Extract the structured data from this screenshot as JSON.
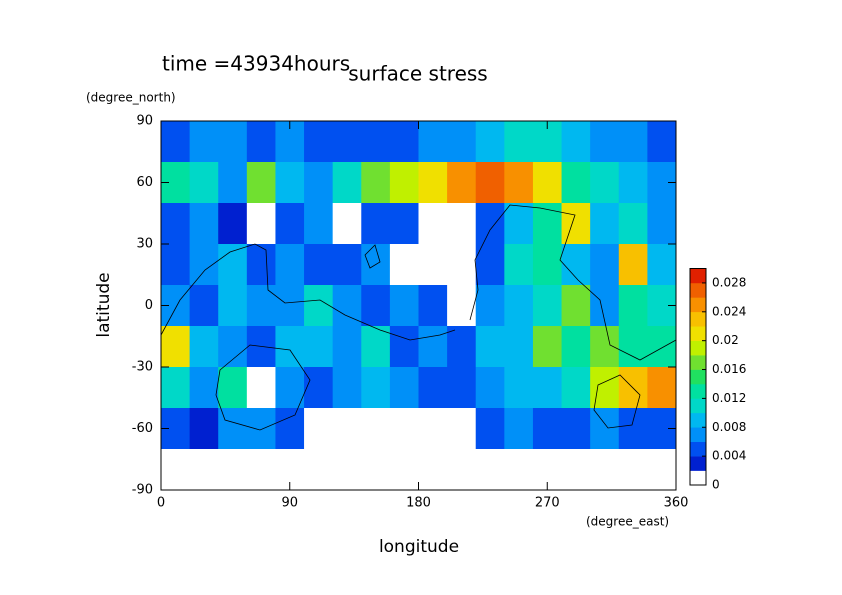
{
  "chart_data": {
    "type": "heatmap",
    "title": "surface stress",
    "annotation": "time =43934hours",
    "x_label": "longitude",
    "y_label": "latitude",
    "x_unit": "(degree_east)",
    "y_unit": "(degree_north)",
    "xlim": [
      0,
      360
    ],
    "ylim": [
      -90,
      90
    ],
    "xticks": [
      0,
      90,
      180,
      270,
      360
    ],
    "yticks": [
      -90,
      -60,
      -30,
      0,
      30,
      60,
      90
    ],
    "x": [
      10,
      30,
      50,
      70,
      90,
      110,
      130,
      150,
      170,
      190,
      210,
      230,
      250,
      270,
      290,
      310,
      330,
      350
    ],
    "y": [
      80,
      60,
      40,
      20,
      0,
      -20,
      -40,
      -60,
      -80
    ],
    "z": [
      [
        0.004,
        0.006,
        0.006,
        0.004,
        0.006,
        0.004,
        0.004,
        0.004,
        0.004,
        0.006,
        0.006,
        0.008,
        0.01,
        0.01,
        0.008,
        0.006,
        0.006,
        0.004
      ],
      [
        0.012,
        0.01,
        0.006,
        0.016,
        0.008,
        0.006,
        0.01,
        0.016,
        0.018,
        0.02,
        0.024,
        0.026,
        0.024,
        0.02,
        0.012,
        0.01,
        0.008,
        0.006
      ],
      [
        0.004,
        0.006,
        0.002,
        0,
        0.004,
        0.006,
        0,
        0.004,
        0.004,
        0,
        0,
        0.004,
        0.008,
        0.012,
        0.02,
        0.008,
        0.01,
        0.006
      ],
      [
        0.004,
        0.006,
        0.008,
        0.004,
        0.006,
        0.004,
        0.004,
        0.006,
        0,
        0,
        0,
        0.004,
        0.01,
        0.012,
        0.008,
        0.006,
        0.022,
        0.008
      ],
      [
        0.006,
        0.004,
        0.008,
        0.006,
        0.006,
        0.01,
        0.006,
        0.004,
        0.006,
        0.004,
        0,
        0.006,
        0.008,
        0.01,
        0.016,
        0.006,
        0.012,
        0.01
      ],
      [
        0.02,
        0.008,
        0.006,
        0.004,
        0.008,
        0.008,
        0.006,
        0.01,
        0.004,
        0.006,
        0.004,
        0.008,
        0.008,
        0.016,
        0.012,
        0.016,
        0.012,
        0.012
      ],
      [
        0.01,
        0.006,
        0.012,
        0,
        0.006,
        0.004,
        0.006,
        0.008,
        0.006,
        0.004,
        0.004,
        0.006,
        0.008,
        0.008,
        0.01,
        0.018,
        0.022,
        0.024
      ],
      [
        0.004,
        0.002,
        0.006,
        0.006,
        0.004,
        0,
        0,
        0,
        0,
        0,
        0,
        0.004,
        0.006,
        0.004,
        0.004,
        0.006,
        0.004,
        0.004
      ],
      [
        0,
        0,
        0,
        0,
        0,
        0,
        0,
        0,
        0,
        0,
        0,
        0,
        0,
        0,
        0,
        0,
        0,
        0
      ]
    ],
    "clim": [
      0,
      0.03
    ],
    "colorbar_ticks": [
      0,
      0.004,
      0.008,
      0.012,
      0.016,
      0.02,
      0.024,
      0.028
    ],
    "colors": [
      "#ffffff",
      "#0020d0",
      "#0050f0",
      "#0090f8",
      "#00b8f0",
      "#00d8c8",
      "#00e0a0",
      "#20e060",
      "#70e030",
      "#c0f000",
      "#f0e000",
      "#f8c000",
      "#f89000",
      "#f06000",
      "#e02000"
    ]
  }
}
